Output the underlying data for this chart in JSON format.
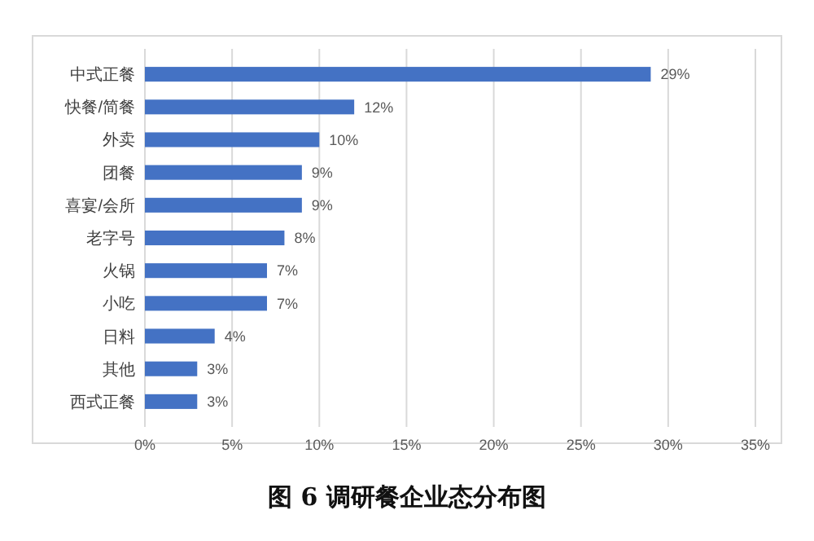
{
  "chart_data": {
    "type": "bar",
    "orientation": "horizontal",
    "title": "图 6 调研餐企业态分布图",
    "categories": [
      "中式正餐",
      "快餐/简餐",
      "外卖",
      "团餐",
      "喜宴/会所",
      "老字号",
      "火锅",
      "小吃",
      "日料",
      "其他",
      "西式正餐"
    ],
    "values": [
      29,
      12,
      10,
      9,
      9,
      8,
      7,
      7,
      4,
      3,
      3
    ],
    "value_labels": [
      "29%",
      "12%",
      "10%",
      "9%",
      "9%",
      "8%",
      "7%",
      "7%",
      "4%",
      "3%",
      "3%"
    ],
    "color": "#4472c4",
    "xlim": [
      0,
      35
    ],
    "xticks": [
      {
        "value": 0,
        "label": "0%"
      },
      {
        "value": 5,
        "label": "5%"
      },
      {
        "value": 10,
        "label": "10%"
      },
      {
        "value": 15,
        "label": "15%"
      },
      {
        "value": 20,
        "label": "20%"
      },
      {
        "value": 25,
        "label": "25%"
      },
      {
        "value": 30,
        "label": "30%"
      },
      {
        "value": 35,
        "label": "35%"
      }
    ],
    "grid": "x"
  }
}
